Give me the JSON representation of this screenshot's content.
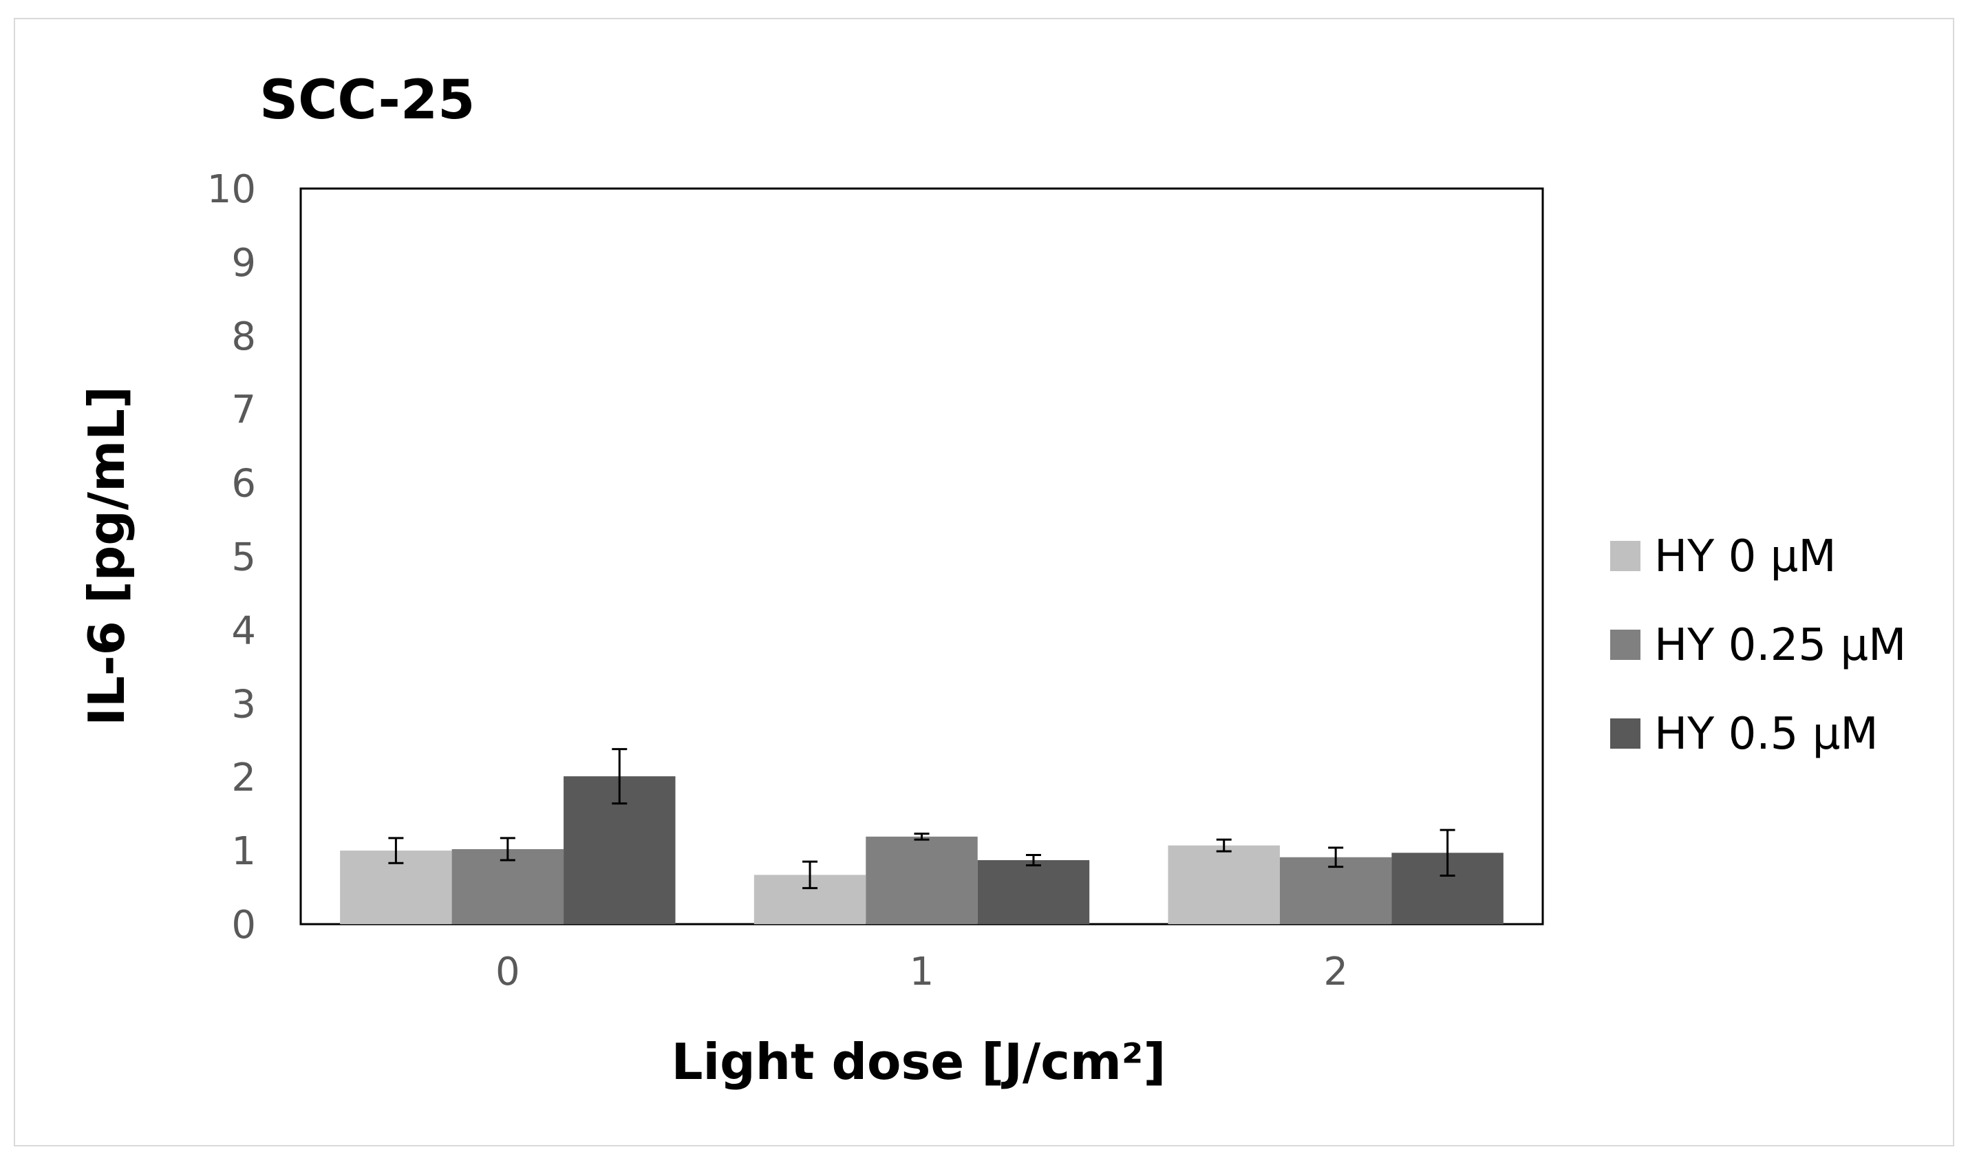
{
  "chart_data": {
    "type": "bar",
    "title": "SCC-25",
    "xlabel": "Light dose [J/cm²]",
    "ylabel": "IL-6 [pg/mL]",
    "categories": [
      "0",
      "1",
      "2"
    ],
    "ylim": [
      0,
      10
    ],
    "yticks": [
      0,
      1,
      2,
      3,
      4,
      5,
      6,
      7,
      8,
      9,
      10
    ],
    "grid": false,
    "legend_position": "right",
    "series": [
      {
        "name": "HY 0 μM",
        "color": "#c0c0c0",
        "values": [
          1.0,
          0.67,
          1.07
        ],
        "errors": [
          0.17,
          0.18,
          0.08
        ]
      },
      {
        "name": "HY 0.25 μM",
        "color": "#808080",
        "values": [
          1.02,
          1.19,
          0.91
        ],
        "errors": [
          0.15,
          0.04,
          0.13
        ]
      },
      {
        "name": "HY 0.5 μM",
        "color": "#595959",
        "values": [
          2.01,
          0.87,
          0.97
        ],
        "errors": [
          0.37,
          0.07,
          0.31
        ]
      }
    ]
  }
}
